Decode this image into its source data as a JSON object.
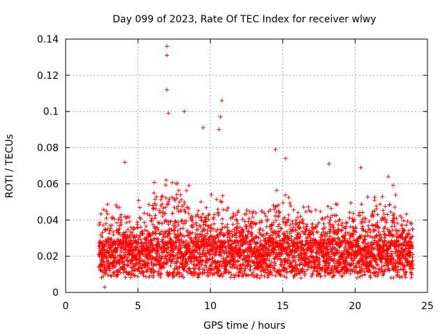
{
  "chart_data": {
    "type": "scatter",
    "title": "Day 099 of 2023, Rate Of TEC Index for receiver wlwy",
    "xlabel": "GPS time / hours",
    "ylabel": "ROTI / TECUs",
    "xlim": [
      0,
      25
    ],
    "ylim": [
      0,
      0.14
    ],
    "xticks": [
      0,
      5,
      10,
      15,
      20,
      25
    ],
    "xtick_labels": [
      "0",
      "5",
      "10",
      "15",
      "20",
      "25"
    ],
    "yticks": [
      0,
      0.02,
      0.04,
      0.06,
      0.08,
      0.1,
      0.12,
      0.14
    ],
    "ytick_labels": [
      "0",
      "0.02",
      "0.04",
      "0.06",
      "0.08",
      "0.1",
      "0.12",
      "0.14"
    ],
    "grid": true,
    "marker": "+",
    "color": "#ff0000",
    "series": [
      {
        "name": "ROTI",
        "x_range": [
          2.3,
          24.0
        ],
        "typical_y_range": [
          0.005,
          0.035
        ],
        "notable_points": [
          {
            "x": 7.0,
            "y": 0.136
          },
          {
            "x": 7.0,
            "y": 0.131
          },
          {
            "x": 7.0,
            "y": 0.112
          },
          {
            "x": 7.1,
            "y": 0.099
          },
          {
            "x": 8.2,
            "y": 0.1
          },
          {
            "x": 9.5,
            "y": 0.091
          },
          {
            "x": 10.8,
            "y": 0.106
          },
          {
            "x": 10.7,
            "y": 0.097
          },
          {
            "x": 10.6,
            "y": 0.09
          },
          {
            "x": 14.5,
            "y": 0.079
          },
          {
            "x": 15.2,
            "y": 0.074
          },
          {
            "x": 18.2,
            "y": 0.071
          },
          {
            "x": 20.4,
            "y": 0.069
          },
          {
            "x": 22.3,
            "y": 0.064
          },
          {
            "x": 4.1,
            "y": 0.072
          },
          {
            "x": 2.7,
            "y": 0.003
          }
        ]
      }
    ]
  }
}
